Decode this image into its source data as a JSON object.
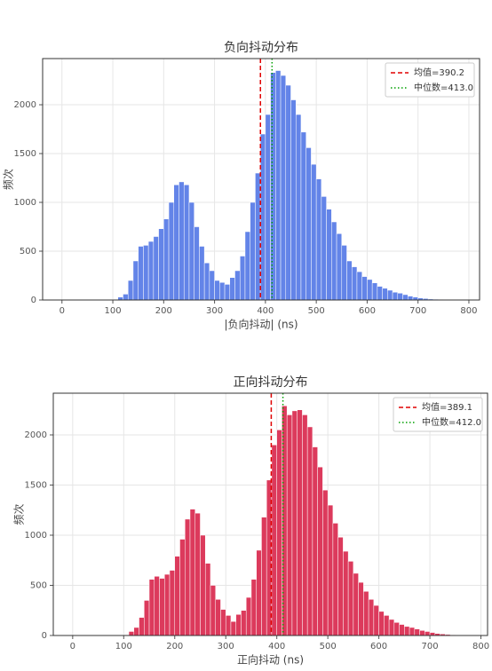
{
  "chart_data": [
    {
      "type": "histogram",
      "title": "负向抖动分布",
      "xlabel": "|负向抖动| (ns)",
      "ylabel": "频次",
      "color": "#6384e8",
      "bins": [
        100,
        110,
        120,
        130,
        140,
        150,
        160,
        170,
        180,
        190,
        200,
        210,
        220,
        230,
        240,
        250,
        260,
        270,
        280,
        290,
        300,
        310,
        320,
        330,
        340,
        350,
        360,
        370,
        380,
        390,
        400,
        410,
        420,
        430,
        440,
        450,
        460,
        470,
        480,
        490,
        500,
        510,
        520,
        530,
        540,
        550,
        560,
        570,
        580,
        590,
        600,
        610,
        620,
        630,
        640,
        650,
        660,
        670,
        680,
        690,
        700,
        710,
        720,
        730,
        740,
        750,
        760,
        770,
        780,
        790
      ],
      "values": [
        5,
        30,
        60,
        200,
        400,
        550,
        560,
        600,
        650,
        730,
        830,
        1000,
        1180,
        1210,
        1180,
        1000,
        750,
        550,
        380,
        300,
        200,
        180,
        160,
        230,
        300,
        450,
        700,
        1000,
        1300,
        1700,
        1900,
        2330,
        2350,
        2300,
        2200,
        2050,
        1900,
        1720,
        1560,
        1390,
        1240,
        1060,
        930,
        800,
        680,
        560,
        400,
        340,
        290,
        240,
        210,
        175,
        140,
        120,
        100,
        80,
        70,
        55,
        40,
        30,
        20,
        15,
        10,
        8,
        5,
        3,
        2,
        1,
        1
      ],
      "mean": {
        "value": 390.2,
        "label": "均值=390.2",
        "color": "#e00000"
      },
      "median": {
        "value": 413.0,
        "label": "中位数=413.0",
        "color": "#00a000"
      },
      "xlim": [
        -38,
        821
      ],
      "ylim": [
        0,
        2473
      ],
      "xticks": [
        0,
        100,
        200,
        300,
        400,
        500,
        600,
        700,
        800
      ],
      "yticks": [
        0,
        500,
        1000,
        1500,
        2000
      ],
      "grid": true,
      "legend": "upper right"
    },
    {
      "type": "histogram",
      "title": "正向抖动分布",
      "xlabel": "正向抖动 (ns)",
      "ylabel": "频次",
      "color": "#dc3a5c",
      "bins": [
        100,
        110,
        120,
        130,
        140,
        150,
        160,
        170,
        180,
        190,
        200,
        210,
        220,
        230,
        240,
        250,
        260,
        270,
        280,
        290,
        300,
        310,
        320,
        330,
        340,
        350,
        360,
        370,
        380,
        390,
        400,
        410,
        420,
        430,
        440,
        450,
        460,
        470,
        480,
        490,
        500,
        510,
        520,
        530,
        540,
        550,
        560,
        570,
        580,
        590,
        600,
        610,
        620,
        630,
        640,
        650,
        660,
        670,
        680,
        690,
        700,
        710,
        720,
        730,
        740,
        750,
        760,
        770,
        780,
        790
      ],
      "values": [
        5,
        40,
        80,
        180,
        350,
        560,
        590,
        570,
        610,
        650,
        790,
        960,
        1160,
        1260,
        1220,
        1000,
        720,
        500,
        360,
        260,
        200,
        140,
        210,
        250,
        380,
        560,
        850,
        1180,
        1550,
        1900,
        2050,
        2290,
        2200,
        2240,
        2250,
        2200,
        2080,
        1880,
        1680,
        1450,
        1300,
        1120,
        980,
        840,
        740,
        620,
        530,
        440,
        360,
        300,
        240,
        200,
        160,
        130,
        110,
        90,
        80,
        65,
        50,
        40,
        30,
        20,
        15,
        10,
        5,
        3,
        2,
        1,
        1
      ],
      "mean": {
        "value": 389.1,
        "label": "均值=389.1",
        "color": "#e00000"
      },
      "median": {
        "value": 412.0,
        "label": "中位数=412.0",
        "color": "#00a000"
      },
      "xlim": [
        -38,
        813
      ],
      "ylim": [
        0,
        2416
      ],
      "xticks": [
        0,
        100,
        200,
        300,
        400,
        500,
        600,
        700,
        800
      ],
      "yticks": [
        0,
        500,
        1000,
        1500,
        2000
      ],
      "grid": true,
      "legend": "upper right"
    }
  ]
}
